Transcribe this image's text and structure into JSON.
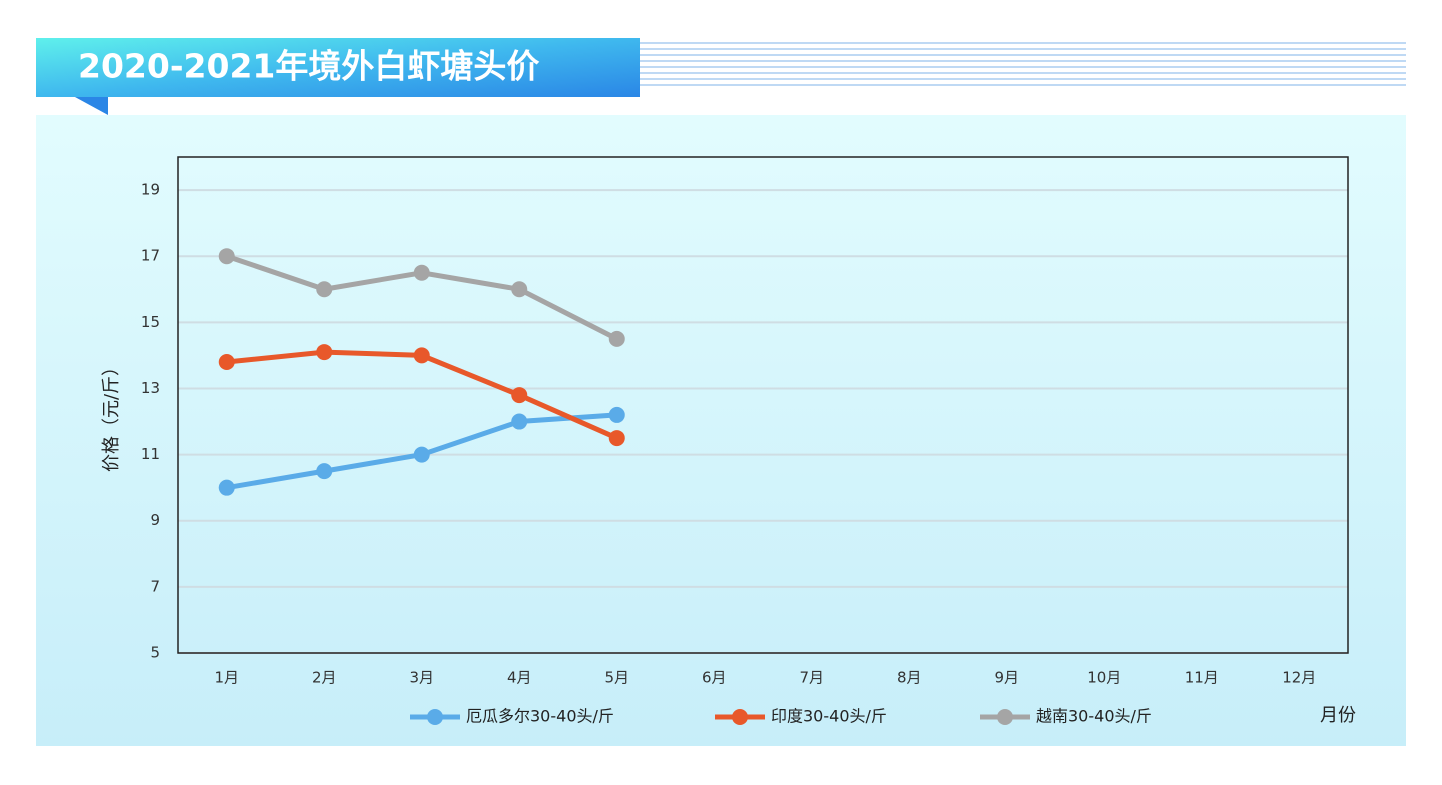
{
  "chart_data": {
    "type": "line",
    "title": "2020-2021年境外白虾塘头价",
    "y_label": "价格（元/斤）",
    "x_label": "月份",
    "categories": [
      "1月",
      "2月",
      "3月",
      "4月",
      "5月",
      "6月",
      "7月",
      "8月",
      "9月",
      "10月",
      "11月",
      "12月"
    ],
    "series": [
      {
        "name": "厄瓜多尔30-40头/斤",
        "color": "#5aabe8",
        "values": [
          10,
          10.5,
          11,
          12,
          12.2,
          null,
          null,
          null,
          null,
          null,
          null,
          null
        ]
      },
      {
        "name": "印度30-40头/斤",
        "color": "#e8582a",
        "values": [
          13.8,
          14.1,
          14,
          12.8,
          11.5,
          null,
          null,
          null,
          null,
          null,
          null,
          null
        ]
      },
      {
        "name": "越南30-40头/斤",
        "color": "#a5a5a5",
        "values": [
          17,
          16,
          16.5,
          16,
          14.5,
          null,
          null,
          null,
          null,
          null,
          null,
          null
        ]
      }
    ],
    "ylim": [
      5,
      20
    ],
    "yticks": [
      5,
      7,
      9,
      11,
      13,
      15,
      17,
      19
    ],
    "grid": true,
    "legend": "bottom"
  }
}
